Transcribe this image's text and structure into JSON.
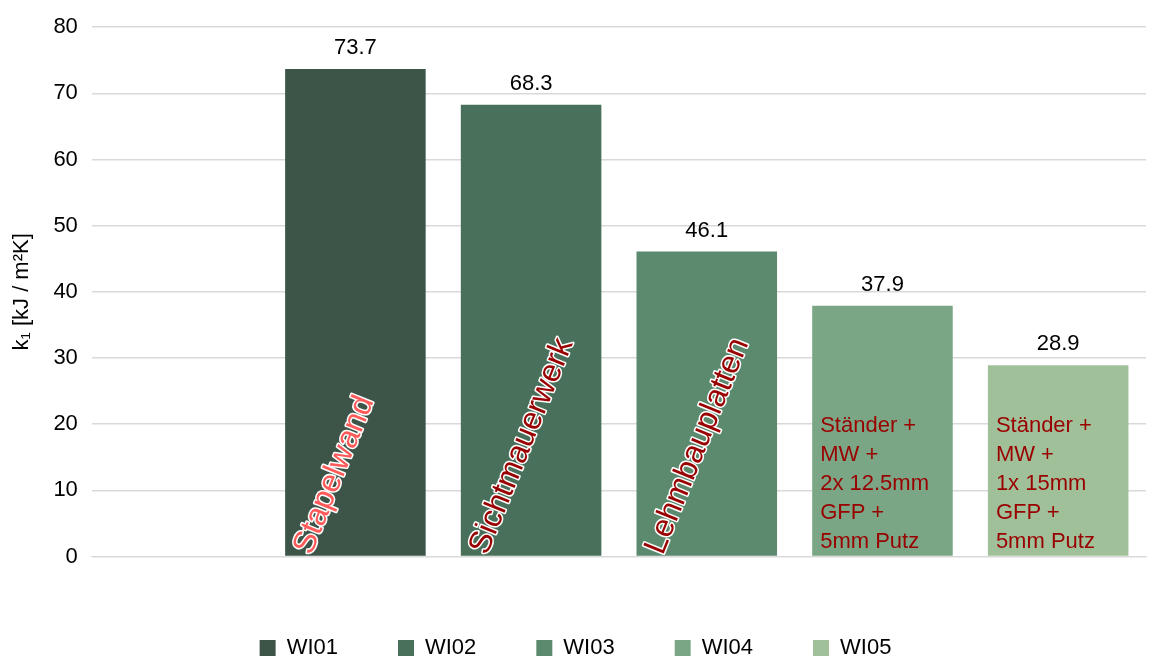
{
  "chart_data": {
    "type": "bar",
    "ylabel": "k₁ [kJ / m²K]",
    "categories": [
      null,
      null,
      null,
      null,
      null,
      null
    ],
    "series": [
      {
        "name": "WI01",
        "color": "#3d5549",
        "values": [
          null,
          73.7,
          null,
          null,
          null,
          null
        ]
      },
      {
        "name": "WI02",
        "color": "#49705b",
        "values": [
          null,
          null,
          68.3,
          null,
          null,
          null
        ]
      },
      {
        "name": "WI03",
        "color": "#5b8a6f",
        "values": [
          null,
          null,
          null,
          46.1,
          null,
          null
        ]
      },
      {
        "name": "WI04",
        "color": "#7ba685",
        "values": [
          null,
          null,
          null,
          null,
          37.9,
          null
        ]
      },
      {
        "name": "WI05",
        "color": "#a0c09a",
        "values": [
          null,
          null,
          null,
          null,
          null,
          28.9
        ]
      }
    ],
    "ylim": [
      0,
      80
    ],
    "yticks": [
      0,
      10,
      20,
      30,
      40,
      50,
      60,
      70,
      80
    ],
    "grid": "y",
    "legend": "bottom",
    "data_labels": true,
    "annotations": [
      "Stapelwand",
      "Sichtmauerwerk",
      "Lehmbauplatten",
      "Ständer +\nMW +\n2x 12.5mm\nGFP +\n5mm Putz",
      "Ständer +\nMW +\n1x 15mm\nGFP +\n5mm Putz"
    ]
  }
}
